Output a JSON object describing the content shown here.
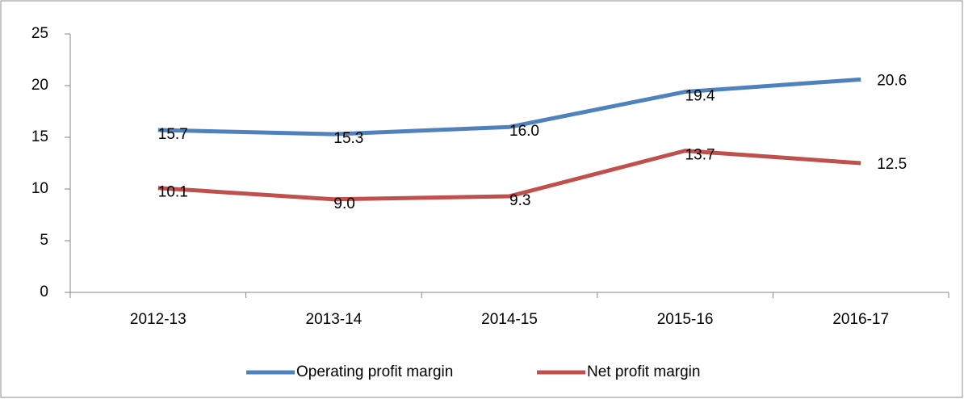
{
  "chart_data": {
    "type": "line",
    "categories": [
      "2012-13",
      "2013-14",
      "2014-15",
      "2015-16",
      "2016-17"
    ],
    "series": [
      {
        "name": "Operating profit margin",
        "color": "#4f81bd",
        "values": [
          15.7,
          15.3,
          16,
          19.4,
          20.6
        ],
        "value_labels": [
          "15.7",
          "15.3",
          "16.0",
          "19.4",
          "20.6"
        ]
      },
      {
        "name": "Net profit margin",
        "color": "#c0504d",
        "values": [
          10.1,
          9,
          9.3,
          13.7,
          12.5
        ],
        "value_labels": [
          "10.1",
          "9.0",
          "9.3",
          "13.7",
          "12.5"
        ]
      }
    ],
    "ylim": [
      0,
      25
    ],
    "yticks": [
      0,
      5,
      10,
      15,
      20,
      25
    ],
    "grid": false,
    "legend": "bottom"
  }
}
